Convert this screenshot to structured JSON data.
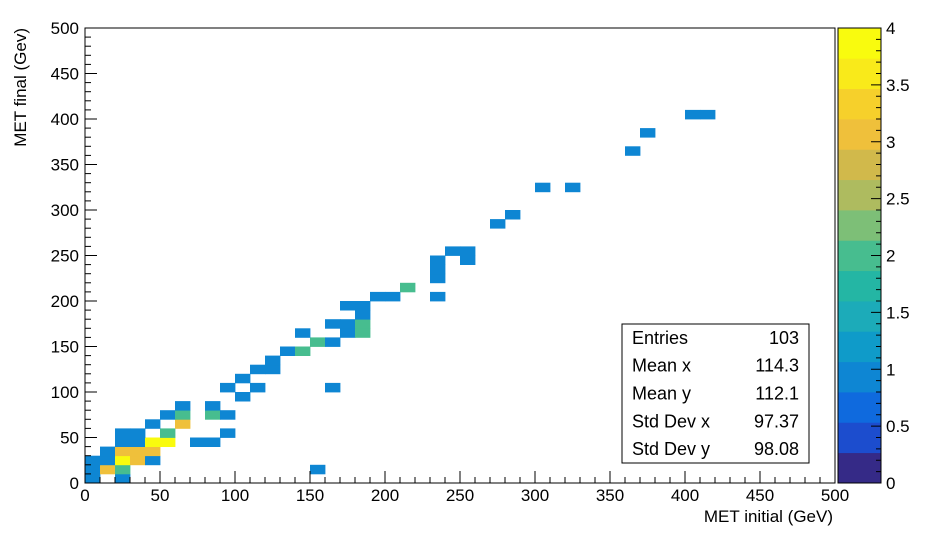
{
  "chart_data": {
    "type": "heatmap",
    "xlabel": "MET initial (GeV)",
    "ylabel": "MET final (Gev)",
    "xlim": [
      0,
      500
    ],
    "ylim": [
      0,
      500
    ],
    "bin_width": 10,
    "x_ticks": [
      "0",
      "50",
      "100",
      "150",
      "200",
      "250",
      "300",
      "350",
      "400",
      "450",
      "500"
    ],
    "y_ticks": [
      "0",
      "50",
      "100",
      "150",
      "200",
      "250",
      "300",
      "350",
      "400",
      "450",
      "500"
    ],
    "z_range": [
      0,
      4
    ],
    "z_ticks": [
      "0",
      "0.5",
      "1",
      "1.5",
      "2",
      "2.5",
      "3",
      "3.5",
      "4"
    ],
    "colorscale": [
      "#352a87",
      "#1c4dce",
      "#0f6ade",
      "#0e86d3",
      "#0f9bc9",
      "#1cabb9",
      "#24b6a4",
      "#47bd8f",
      "#7dbf77",
      "#aebb5f",
      "#d1b94b",
      "#efc03b",
      "#f6d02b",
      "#f9ea1a",
      "#f9fb0e"
    ],
    "cells": [
      {
        "x": 0,
        "y": 0,
        "v": 1
      },
      {
        "x": 20,
        "y": 0,
        "v": 1
      },
      {
        "x": 0,
        "y": 10,
        "v": 1
      },
      {
        "x": 10,
        "y": 10,
        "v": 3
      },
      {
        "x": 20,
        "y": 10,
        "v": 2
      },
      {
        "x": 150,
        "y": 10,
        "v": 1
      },
      {
        "x": 0,
        "y": 20,
        "v": 1
      },
      {
        "x": 10,
        "y": 20,
        "v": 1
      },
      {
        "x": 20,
        "y": 20,
        "v": 4
      },
      {
        "x": 30,
        "y": 20,
        "v": 3
      },
      {
        "x": 40,
        "y": 20,
        "v": 1
      },
      {
        "x": 10,
        "y": 30,
        "v": 1
      },
      {
        "x": 20,
        "y": 30,
        "v": 3
      },
      {
        "x": 30,
        "y": 30,
        "v": 3
      },
      {
        "x": 40,
        "y": 30,
        "v": 3
      },
      {
        "x": 20,
        "y": 40,
        "v": 1
      },
      {
        "x": 30,
        "y": 40,
        "v": 1
      },
      {
        "x": 40,
        "y": 40,
        "v": 4
      },
      {
        "x": 50,
        "y": 40,
        "v": 4
      },
      {
        "x": 70,
        "y": 40,
        "v": 1
      },
      {
        "x": 80,
        "y": 40,
        "v": 1
      },
      {
        "x": 20,
        "y": 50,
        "v": 1
      },
      {
        "x": 30,
        "y": 50,
        "v": 1
      },
      {
        "x": 50,
        "y": 50,
        "v": 2
      },
      {
        "x": 90,
        "y": 50,
        "v": 1
      },
      {
        "x": 40,
        "y": 60,
        "v": 1
      },
      {
        "x": 60,
        "y": 60,
        "v": 3
      },
      {
        "x": 50,
        "y": 70,
        "v": 1
      },
      {
        "x": 60,
        "y": 70,
        "v": 2
      },
      {
        "x": 80,
        "y": 70,
        "v": 2
      },
      {
        "x": 90,
        "y": 70,
        "v": 1
      },
      {
        "x": 60,
        "y": 80,
        "v": 1
      },
      {
        "x": 80,
        "y": 80,
        "v": 1
      },
      {
        "x": 100,
        "y": 90,
        "v": 1
      },
      {
        "x": 90,
        "y": 100,
        "v": 1
      },
      {
        "x": 110,
        "y": 100,
        "v": 1
      },
      {
        "x": 160,
        "y": 100,
        "v": 1
      },
      {
        "x": 100,
        "y": 110,
        "v": 1
      },
      {
        "x": 110,
        "y": 120,
        "v": 1
      },
      {
        "x": 120,
        "y": 120,
        "v": 1
      },
      {
        "x": 120,
        "y": 130,
        "v": 1
      },
      {
        "x": 130,
        "y": 140,
        "v": 1
      },
      {
        "x": 140,
        "y": 140,
        "v": 2
      },
      {
        "x": 150,
        "y": 150,
        "v": 2
      },
      {
        "x": 160,
        "y": 150,
        "v": 1
      },
      {
        "x": 140,
        "y": 160,
        "v": 1
      },
      {
        "x": 170,
        "y": 160,
        "v": 1
      },
      {
        "x": 180,
        "y": 160,
        "v": 2
      },
      {
        "x": 160,
        "y": 170,
        "v": 1
      },
      {
        "x": 170,
        "y": 170,
        "v": 1
      },
      {
        "x": 180,
        "y": 170,
        "v": 2
      },
      {
        "x": 180,
        "y": 180,
        "v": 1
      },
      {
        "x": 170,
        "y": 190,
        "v": 1
      },
      {
        "x": 180,
        "y": 190,
        "v": 1
      },
      {
        "x": 190,
        "y": 200,
        "v": 1
      },
      {
        "x": 200,
        "y": 200,
        "v": 1
      },
      {
        "x": 230,
        "y": 200,
        "v": 1
      },
      {
        "x": 210,
        "y": 210,
        "v": 2
      },
      {
        "x": 230,
        "y": 220,
        "v": 1
      },
      {
        "x": 230,
        "y": 230,
        "v": 1
      },
      {
        "x": 230,
        "y": 240,
        "v": 1
      },
      {
        "x": 250,
        "y": 240,
        "v": 1
      },
      {
        "x": 240,
        "y": 250,
        "v": 1
      },
      {
        "x": 250,
        "y": 250,
        "v": 1
      },
      {
        "x": 270,
        "y": 280,
        "v": 1
      },
      {
        "x": 280,
        "y": 290,
        "v": 1
      },
      {
        "x": 300,
        "y": 320,
        "v": 1
      },
      {
        "x": 320,
        "y": 320,
        "v": 1
      },
      {
        "x": 360,
        "y": 360,
        "v": 1
      },
      {
        "x": 370,
        "y": 380,
        "v": 1
      },
      {
        "x": 400,
        "y": 400,
        "v": 1
      },
      {
        "x": 410,
        "y": 400,
        "v": 1
      }
    ],
    "stats": [
      {
        "label": "Entries",
        "value": "103"
      },
      {
        "label": "Mean x",
        "value": "114.3"
      },
      {
        "label": "Mean y",
        "value": "112.1"
      },
      {
        "label": "Std Dev x",
        "value": "97.37"
      },
      {
        "label": "Std Dev y",
        "value": "98.08"
      }
    ]
  }
}
